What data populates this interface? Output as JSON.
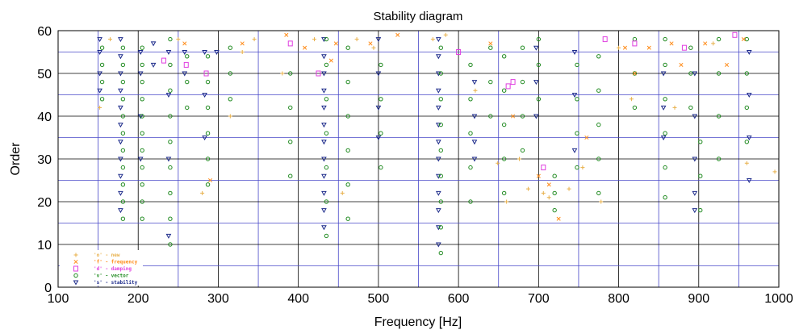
{
  "chart_data": {
    "type": "scatter",
    "title": "Stability diagram",
    "xlabel": "Frequency [Hz]",
    "ylabel": "Order",
    "xlim": [
      100,
      1000
    ],
    "ylim": [
      0,
      60
    ],
    "x_ticks": [
      "100",
      "200",
      "300",
      "400",
      "500",
      "600",
      "700",
      "800",
      "900",
      "1000"
    ],
    "y_ticks": [
      "0",
      "10",
      "20",
      "30",
      "40",
      "50",
      "60"
    ],
    "grid": true,
    "legend_position": "bottom-left",
    "legend": [
      {
        "symbol": "+",
        "code": "'o'",
        "label": "new",
        "color": "#e8b04a"
      },
      {
        "symbol": "x",
        "code": "'f'",
        "label": "frequency",
        "color": "#ff8c1a"
      },
      {
        "symbol": "box",
        "code": "'d'",
        "label": "damping",
        "color": "#e040e0"
      },
      {
        "symbol": "circle",
        "code": "'v'",
        "label": "vector",
        "color": "#1f8a1f"
      },
      {
        "symbol": "triangle",
        "code": "'s'",
        "label": "stability",
        "color": "#1c2a8a"
      }
    ],
    "series": [
      {
        "name": "'s' - stability",
        "values": [
          [
            152,
            46
          ],
          [
            152,
            50
          ],
          [
            152,
            55
          ],
          [
            152,
            58
          ],
          [
            178,
            18
          ],
          [
            178,
            22
          ],
          [
            178,
            26
          ],
          [
            178,
            30
          ],
          [
            178,
            34
          ],
          [
            178,
            38
          ],
          [
            178,
            42
          ],
          [
            178,
            46
          ],
          [
            178,
            50
          ],
          [
            178,
            54
          ],
          [
            178,
            58
          ],
          [
            203,
            30
          ],
          [
            203,
            40
          ],
          [
            203,
            50
          ],
          [
            203,
            55
          ],
          [
            219,
            52
          ],
          [
            219,
            57
          ],
          [
            238,
            12
          ],
          [
            238,
            30
          ],
          [
            238,
            45
          ],
          [
            238,
            55
          ],
          [
            258,
            50
          ],
          [
            258,
            55
          ],
          [
            283,
            35
          ],
          [
            283,
            45
          ],
          [
            283,
            55
          ],
          [
            298,
            55
          ],
          [
            432,
            14
          ],
          [
            432,
            18
          ],
          [
            432,
            22
          ],
          [
            432,
            26
          ],
          [
            432,
            30
          ],
          [
            432,
            34
          ],
          [
            432,
            38
          ],
          [
            432,
            42
          ],
          [
            432,
            46
          ],
          [
            432,
            50
          ],
          [
            432,
            54
          ],
          [
            432,
            58
          ],
          [
            500,
            35
          ],
          [
            500,
            42
          ],
          [
            500,
            50
          ],
          [
            500,
            58
          ],
          [
            575,
            10
          ],
          [
            575,
            14
          ],
          [
            575,
            18
          ],
          [
            575,
            22
          ],
          [
            575,
            26
          ],
          [
            575,
            30
          ],
          [
            575,
            34
          ],
          [
            575,
            38
          ],
          [
            575,
            42
          ],
          [
            575,
            46
          ],
          [
            575,
            50
          ],
          [
            575,
            54
          ],
          [
            575,
            58
          ],
          [
            620,
            30
          ],
          [
            620,
            34
          ],
          [
            620,
            40
          ],
          [
            620,
            48
          ],
          [
            697,
            40
          ],
          [
            697,
            48
          ],
          [
            697,
            56
          ],
          [
            745,
            32
          ],
          [
            745,
            45
          ],
          [
            745,
            55
          ],
          [
            856,
            35
          ],
          [
            856,
            42
          ],
          [
            856,
            50
          ],
          [
            895,
            18
          ],
          [
            895,
            22
          ],
          [
            895,
            30
          ],
          [
            895,
            40
          ],
          [
            895,
            50
          ],
          [
            963,
            25
          ],
          [
            963,
            35
          ],
          [
            963,
            45
          ],
          [
            963,
            55
          ]
        ]
      },
      {
        "name": "'v' - vector",
        "values": [
          [
            155,
            44
          ],
          [
            155,
            48
          ],
          [
            155,
            52
          ],
          [
            155,
            56
          ],
          [
            181,
            16
          ],
          [
            181,
            20
          ],
          [
            181,
            24
          ],
          [
            181,
            28
          ],
          [
            181,
            32
          ],
          [
            181,
            36
          ],
          [
            181,
            40
          ],
          [
            181,
            44
          ],
          [
            181,
            48
          ],
          [
            181,
            52
          ],
          [
            181,
            56
          ],
          [
            205,
            16
          ],
          [
            205,
            20
          ],
          [
            205,
            24
          ],
          [
            205,
            28
          ],
          [
            205,
            32
          ],
          [
            205,
            36
          ],
          [
            205,
            40
          ],
          [
            205,
            44
          ],
          [
            205,
            48
          ],
          [
            205,
            52
          ],
          [
            205,
            56
          ],
          [
            240,
            10
          ],
          [
            240,
            16
          ],
          [
            240,
            22
          ],
          [
            240,
            28
          ],
          [
            240,
            34
          ],
          [
            240,
            40
          ],
          [
            240,
            46
          ],
          [
            240,
            52
          ],
          [
            240,
            58
          ],
          [
            261,
            42
          ],
          [
            261,
            48
          ],
          [
            261,
            54
          ],
          [
            287,
            24
          ],
          [
            287,
            30
          ],
          [
            287,
            36
          ],
          [
            287,
            42
          ],
          [
            287,
            48
          ],
          [
            287,
            54
          ],
          [
            315,
            44
          ],
          [
            315,
            50
          ],
          [
            315,
            56
          ],
          [
            390,
            26
          ],
          [
            390,
            34
          ],
          [
            390,
            42
          ],
          [
            390,
            50
          ],
          [
            435,
            12
          ],
          [
            435,
            20
          ],
          [
            435,
            28
          ],
          [
            435,
            36
          ],
          [
            435,
            44
          ],
          [
            435,
            52
          ],
          [
            435,
            58
          ],
          [
            462,
            16
          ],
          [
            462,
            24
          ],
          [
            462,
            32
          ],
          [
            462,
            40
          ],
          [
            462,
            48
          ],
          [
            462,
            56
          ],
          [
            503,
            28
          ],
          [
            503,
            36
          ],
          [
            503,
            44
          ],
          [
            503,
            52
          ],
          [
            578,
            8
          ],
          [
            578,
            14
          ],
          [
            578,
            20
          ],
          [
            578,
            26
          ],
          [
            578,
            32
          ],
          [
            578,
            38
          ],
          [
            578,
            44
          ],
          [
            578,
            50
          ],
          [
            578,
            56
          ],
          [
            615,
            20
          ],
          [
            615,
            28
          ],
          [
            615,
            36
          ],
          [
            615,
            44
          ],
          [
            615,
            52
          ],
          [
            640,
            40
          ],
          [
            640,
            48
          ],
          [
            640,
            56
          ],
          [
            657,
            22
          ],
          [
            657,
            30
          ],
          [
            657,
            38
          ],
          [
            657,
            46
          ],
          [
            657,
            54
          ],
          [
            680,
            32
          ],
          [
            680,
            40
          ],
          [
            680,
            48
          ],
          [
            680,
            56
          ],
          [
            700,
            44
          ],
          [
            700,
            52
          ],
          [
            700,
            58
          ],
          [
            720,
            18
          ],
          [
            720,
            22
          ],
          [
            720,
            26
          ],
          [
            748,
            28
          ],
          [
            748,
            36
          ],
          [
            748,
            44
          ],
          [
            748,
            52
          ],
          [
            775,
            22
          ],
          [
            775,
            30
          ],
          [
            775,
            38
          ],
          [
            775,
            46
          ],
          [
            775,
            54
          ],
          [
            820,
            42
          ],
          [
            820,
            50
          ],
          [
            820,
            58
          ],
          [
            858,
            21
          ],
          [
            858,
            28
          ],
          [
            858,
            36
          ],
          [
            858,
            44
          ],
          [
            858,
            52
          ],
          [
            858,
            58
          ],
          [
            890,
            42
          ],
          [
            890,
            50
          ],
          [
            890,
            56
          ],
          [
            902,
            18
          ],
          [
            902,
            26
          ],
          [
            902,
            34
          ],
          [
            925,
            30
          ],
          [
            925,
            40
          ],
          [
            925,
            50
          ],
          [
            925,
            58
          ],
          [
            960,
            34
          ],
          [
            960,
            42
          ],
          [
            960,
            50
          ],
          [
            960,
            58
          ]
        ]
      },
      {
        "name": "'d' - damping",
        "values": [
          [
            232,
            53
          ],
          [
            260,
            52
          ],
          [
            285,
            50
          ],
          [
            390,
            57
          ],
          [
            425,
            50
          ],
          [
            600,
            55
          ],
          [
            662,
            47
          ],
          [
            668,
            48
          ],
          [
            706,
            28
          ],
          [
            783,
            58
          ],
          [
            820,
            57
          ],
          [
            882,
            56
          ],
          [
            945,
            59
          ]
        ]
      },
      {
        "name": "'f' - frequency",
        "values": [
          [
            258,
            57
          ],
          [
            290,
            25
          ],
          [
            330,
            57
          ],
          [
            385,
            59
          ],
          [
            408,
            56
          ],
          [
            441,
            53
          ],
          [
            447,
            57
          ],
          [
            490,
            57
          ],
          [
            524,
            59
          ],
          [
            640,
            57
          ],
          [
            668,
            40
          ],
          [
            700,
            26
          ],
          [
            713,
            24
          ],
          [
            725,
            16
          ],
          [
            760,
            35
          ],
          [
            808,
            56
          ],
          [
            820,
            50
          ],
          [
            838,
            56
          ],
          [
            866,
            57
          ],
          [
            878,
            52
          ],
          [
            908,
            57
          ],
          [
            935,
            52
          ],
          [
            956,
            58
          ]
        ]
      },
      {
        "name": "'o' - new",
        "values": [
          [
            152,
            42
          ],
          [
            165,
            58
          ],
          [
            250,
            58
          ],
          [
            280,
            22
          ],
          [
            315,
            40
          ],
          [
            330,
            55
          ],
          [
            345,
            58
          ],
          [
            380,
            50
          ],
          [
            420,
            58
          ],
          [
            455,
            22
          ],
          [
            473,
            58
          ],
          [
            494,
            56
          ],
          [
            568,
            58
          ],
          [
            584,
            59
          ],
          [
            621,
            46
          ],
          [
            649,
            29
          ],
          [
            660,
            20
          ],
          [
            676,
            30
          ],
          [
            687,
            23
          ],
          [
            706,
            22
          ],
          [
            713,
            21
          ],
          [
            738,
            23
          ],
          [
            755,
            28
          ],
          [
            778,
            20
          ],
          [
            800,
            56
          ],
          [
            816,
            44
          ],
          [
            870,
            42
          ],
          [
            918,
            57
          ],
          [
            960,
            29
          ],
          [
            995,
            27
          ]
        ]
      }
    ]
  }
}
